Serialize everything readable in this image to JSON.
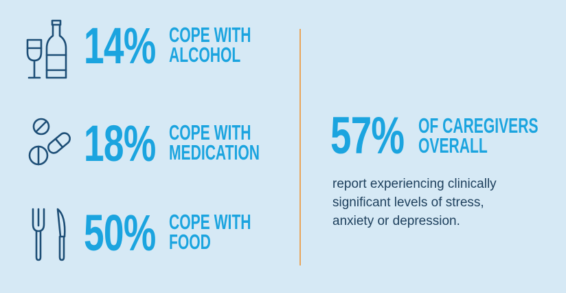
{
  "stats": [
    {
      "percent": "14%",
      "label_line1": "COPE WITH",
      "label_line2": "ALCOHOL",
      "icon": "wine-bottle-icon"
    },
    {
      "percent": "18%",
      "label_line1": "COPE WITH",
      "label_line2": "MEDICATION",
      "icon": "pills-icon"
    },
    {
      "percent": "50%",
      "label_line1": "COPE WITH",
      "label_line2": "FOOD",
      "icon": "fork-knife-icon"
    }
  ],
  "overall": {
    "percent": "57%",
    "label_line1": "OF CAREGIVERS",
    "label_line2": "OVERALL",
    "description_lines": [
      "report experiencing clinically",
      "significant levels of stress,",
      "anxiety or depression."
    ]
  },
  "colors": {
    "background": "#d6e9f5",
    "accent": "#1ba4df",
    "icon": "#1d4e76",
    "divider": "#e8a45a",
    "body_text": "#1d3f5c"
  }
}
